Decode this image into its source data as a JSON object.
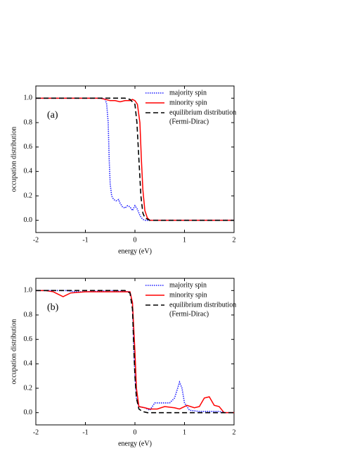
{
  "chart_data": [
    {
      "type": "line",
      "panel_label": "(a)",
      "xlabel": "energy (eV)",
      "ylabel": "occupation distribution",
      "xlim": [
        -2,
        2
      ],
      "ylim": [
        -0.1,
        1.1
      ],
      "xticks": [
        -2,
        -1,
        0,
        1,
        2
      ],
      "yticks": [
        {
          "value": 0,
          "label": "0.0"
        },
        0.2,
        0.4,
        0.6,
        0.8,
        {
          "value": 1,
          "label": "1.0"
        }
      ],
      "series": [
        {
          "name": "majority spin",
          "color": "#1f1fff",
          "style": "dotted",
          "x": [
            -2,
            -0.65,
            -0.6,
            -0.57,
            -0.54,
            -0.52,
            -0.5,
            -0.47,
            -0.43,
            -0.38,
            -0.33,
            -0.3,
            -0.25,
            -0.2,
            -0.15,
            -0.1,
            -0.05,
            0,
            0.05,
            0.1,
            0.15,
            0.2,
            2
          ],
          "values": [
            1,
            1,
            0.99,
            0.95,
            0.8,
            0.5,
            0.3,
            0.2,
            0.17,
            0.16,
            0.17,
            0.14,
            0.11,
            0.1,
            0.12,
            0.11,
            0.08,
            0.12,
            0.09,
            0.04,
            0.01,
            0,
            0
          ]
        },
        {
          "name": "minority spin",
          "color": "#ff0000",
          "style": "solid",
          "x": [
            -2,
            -0.7,
            -0.6,
            -0.5,
            -0.4,
            -0.3,
            -0.2,
            -0.1,
            -0.05,
            0,
            0.05,
            0.1,
            0.13,
            0.16,
            0.2,
            0.25,
            0.3,
            2
          ],
          "values": [
            1,
            1,
            0.99,
            0.98,
            0.98,
            0.97,
            0.98,
            0.98,
            0.99,
            0.98,
            0.95,
            0.8,
            0.5,
            0.25,
            0.08,
            0.02,
            0,
            0
          ]
        },
        {
          "name": "equilibrium distribution",
          "note": "(Fermi-Dirac)",
          "color": "#000000",
          "style": "dashed",
          "x": [
            -2,
            -0.2,
            -0.1,
            0,
            0.04,
            0.08,
            0.12,
            0.16,
            0.2,
            0.3,
            2
          ],
          "values": [
            1,
            1,
            0.99,
            0.95,
            0.8,
            0.5,
            0.2,
            0.06,
            0.02,
            0,
            0
          ]
        }
      ]
    },
    {
      "type": "line",
      "panel_label": "(b)",
      "xlabel": "energy (eV)",
      "ylabel": "occupation distribution",
      "xlim": [
        -2,
        2
      ],
      "ylim": [
        -0.1,
        1.1
      ],
      "xticks": [
        -2,
        -1,
        0,
        1,
        2
      ],
      "yticks": [
        {
          "value": 0,
          "label": "0.0"
        },
        0.2,
        0.4,
        0.6,
        0.8,
        {
          "value": 1,
          "label": "1.0"
        }
      ],
      "series": [
        {
          "name": "majority spin",
          "color": "#1f1fff",
          "style": "dotted",
          "x": [
            -2,
            -1.4,
            -1.2,
            -1,
            -0.5,
            -0.1,
            -0.05,
            -0.02,
            0,
            0.03,
            0.08,
            0.2,
            0.3,
            0.4,
            0.5,
            0.7,
            0.8,
            0.9,
            0.95,
            1,
            1.1,
            1.3,
            1.7,
            1.8,
            2
          ],
          "values": [
            1,
            1,
            0.99,
            0.99,
            1,
            0.99,
            0.9,
            0.5,
            0.3,
            0.12,
            0.05,
            0.04,
            0.02,
            0.08,
            0.08,
            0.08,
            0.12,
            0.25,
            0.2,
            0.08,
            0.02,
            0.01,
            0.01,
            0,
            0
          ]
        },
        {
          "name": "minority spin",
          "color": "#ff0000",
          "style": "solid",
          "x": [
            -2,
            -1.8,
            -1.65,
            -1.55,
            -1.45,
            -1.3,
            -1,
            -0.1,
            -0.05,
            0,
            0.03,
            0.08,
            0.2,
            0.3,
            0.45,
            0.6,
            0.8,
            0.9,
            1.05,
            1.2,
            1.3,
            1.4,
            1.5,
            1.6,
            1.7,
            1.8,
            2
          ],
          "values": [
            1,
            1,
            0.99,
            0.97,
            0.95,
            0.98,
            0.99,
            0.99,
            0.9,
            0.5,
            0.2,
            0.05,
            0.04,
            0.03,
            0.03,
            0.05,
            0.04,
            0.03,
            0.06,
            0.04,
            0.05,
            0.12,
            0.13,
            0.06,
            0.05,
            0,
            0
          ]
        },
        {
          "name": "equilibrium distribution",
          "note": "(Fermi-Dirac)",
          "color": "#000000",
          "style": "dashed",
          "x": [
            -2,
            -0.2,
            -0.1,
            -0.05,
            -0.02,
            0,
            0.03,
            0.08,
            0.15,
            0.25,
            2
          ],
          "values": [
            1,
            1,
            0.98,
            0.85,
            0.5,
            0.3,
            0.12,
            0.03,
            0.01,
            0,
            0
          ]
        }
      ]
    }
  ]
}
